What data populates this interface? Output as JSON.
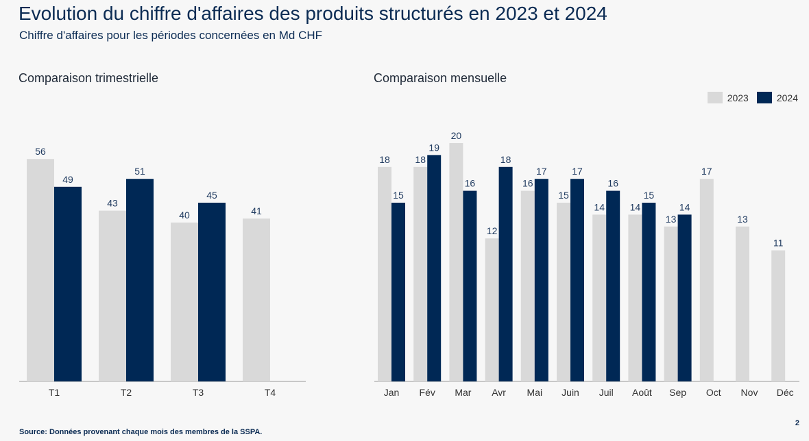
{
  "page": {
    "title": "Evolution du chiffre d'affaires des produits structurés en 2023 et 2024",
    "subtitle": "Chiffre d'affaires pour les périodes concernées en Md CHF",
    "source": "Source: Données provenant chaque mois des membres de la SSPA.",
    "page_number": "2"
  },
  "colors": {
    "series_2023": "#d9d9d9",
    "series_2024": "#002855",
    "label": "#1f3a5f",
    "axis": "#9a9a9a"
  },
  "legend": {
    "items": [
      {
        "label": "2023"
      },
      {
        "label": "2024"
      }
    ]
  },
  "chart_data": [
    {
      "type": "bar",
      "title": "Comparaison trimestrielle",
      "categories": [
        "T1",
        "T2",
        "T3",
        "T4"
      ],
      "series": [
        {
          "name": "2023",
          "values": [
            56,
            43,
            40,
            41
          ]
        },
        {
          "name": "2024",
          "values": [
            49,
            51,
            45,
            null
          ]
        }
      ],
      "ylim": [
        0,
        60
      ],
      "grid": false,
      "legend": "top-right"
    },
    {
      "type": "bar",
      "title": "Comparaison mensuelle",
      "categories": [
        "Jan",
        "Fév",
        "Mar",
        "Avr",
        "Mai",
        "Juin",
        "Juil",
        "Août",
        "Sep",
        "Oct",
        "Nov",
        "Déc"
      ],
      "series": [
        {
          "name": "2023",
          "values": [
            18,
            18,
            20,
            12,
            16,
            15,
            14,
            14,
            13,
            17,
            13,
            11
          ]
        },
        {
          "name": "2024",
          "values": [
            15,
            19,
            16,
            18,
            17,
            17,
            16,
            15,
            14,
            null,
            null,
            null
          ]
        }
      ],
      "ylim": [
        0,
        20
      ],
      "grid": false,
      "legend": "top-right"
    }
  ]
}
